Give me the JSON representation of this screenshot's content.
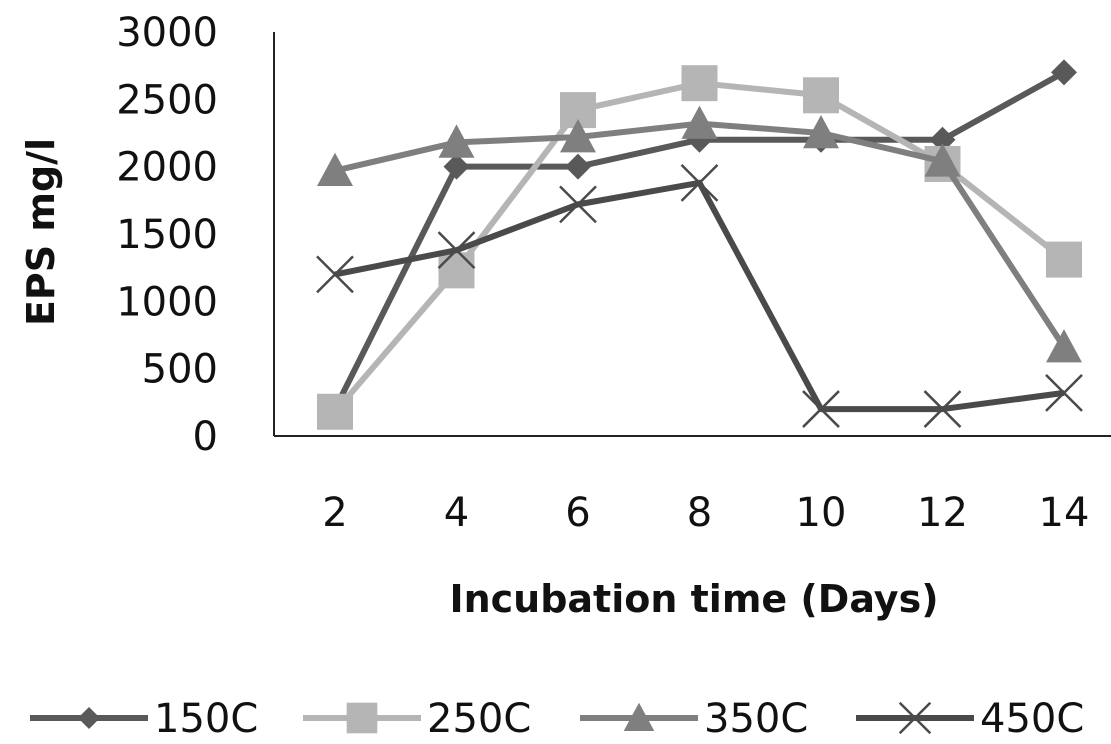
{
  "chart_data": {
    "type": "line",
    "title": "",
    "xlabel": "Incubation time (Days)",
    "ylabel": "EPS mg/l",
    "categories": [
      "2",
      "4",
      "6",
      "8",
      "10",
      "12",
      "14"
    ],
    "ylim": [
      0,
      3000
    ],
    "yticks": [
      "0",
      "500",
      "1000",
      "1500",
      "2000",
      "2500",
      "3000"
    ],
    "grid": false,
    "legend_position": "bottom",
    "series": [
      {
        "name": "150C",
        "values": [
          200,
          2000,
          2000,
          2200,
          2200,
          2200,
          2700
        ],
        "color": "#595959",
        "marker": "diamond"
      },
      {
        "name": "250C",
        "values": [
          180,
          1230,
          2420,
          2620,
          2530,
          2020,
          1310
        ],
        "color": "#b5b5b5",
        "marker": "square"
      },
      {
        "name": "350C",
        "values": [
          1970,
          2180,
          2220,
          2320,
          2250,
          2040,
          660
        ],
        "color": "#7f7f7f",
        "marker": "triangle"
      },
      {
        "name": "450C",
        "values": [
          1200,
          1380,
          1720,
          1880,
          200,
          200,
          320
        ],
        "color": "#4a4a4a",
        "marker": "x"
      }
    ]
  }
}
